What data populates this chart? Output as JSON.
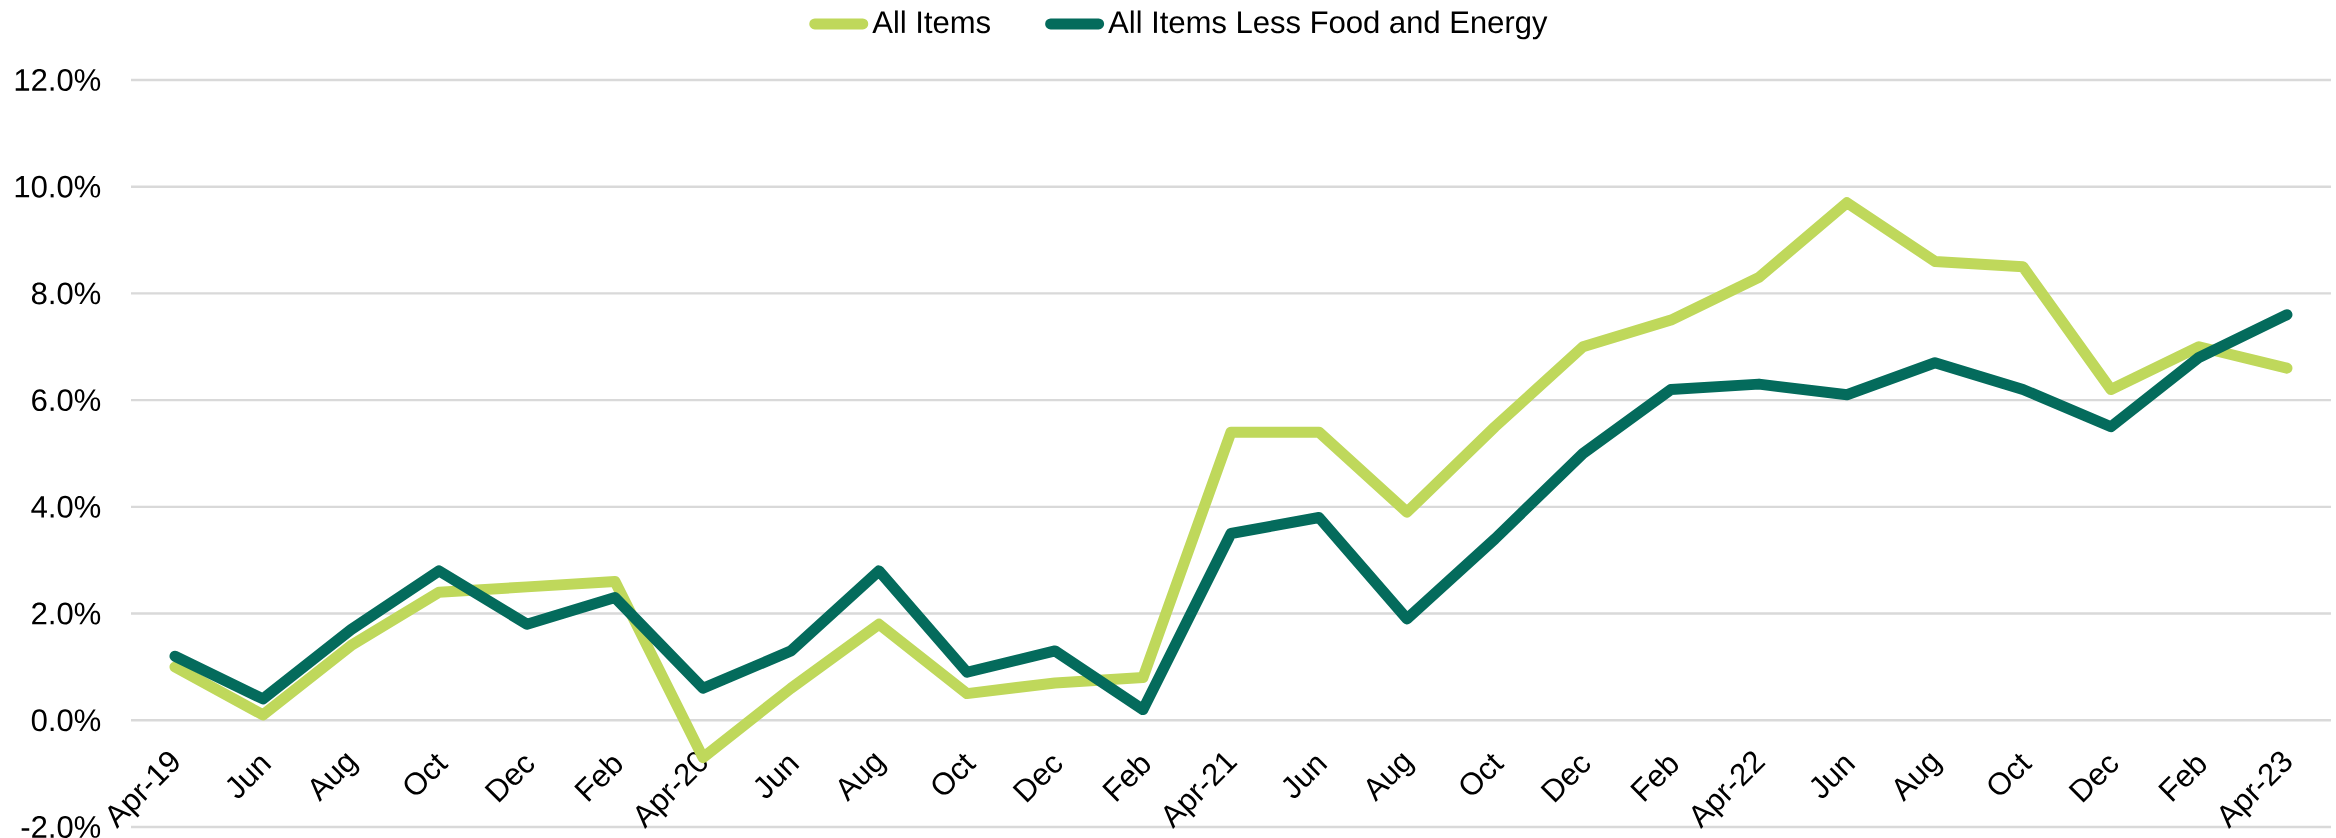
{
  "chart_data": {
    "type": "line",
    "categories": [
      "Apr-19",
      "Jun",
      "Aug",
      "Oct",
      "Dec",
      "Feb",
      "Apr-20",
      "Jun",
      "Aug",
      "Oct",
      "Dec",
      "Feb",
      "Apr-21",
      "Jun",
      "Aug",
      "Oct",
      "Dec",
      "Feb",
      "Apr-22",
      "Jun",
      "Aug",
      "Oct",
      "Dec",
      "Feb",
      "Apr-23"
    ],
    "series": [
      {
        "name": "All Items",
        "color": "#bfd85b",
        "values": [
          1.0,
          0.1,
          1.4,
          2.4,
          2.5,
          2.6,
          -0.7,
          0.6,
          1.8,
          0.5,
          0.7,
          0.8,
          5.4,
          5.4,
          3.9,
          5.5,
          7.0,
          7.5,
          8.3,
          9.7,
          8.6,
          8.5,
          6.2,
          7.0,
          6.6
        ]
      },
      {
        "name": "All Items Less Food and Energy",
        "color": "#046b5c",
        "values": [
          1.2,
          0.4,
          1.7,
          2.8,
          1.8,
          2.3,
          0.6,
          1.3,
          2.8,
          0.9,
          1.3,
          0.2,
          3.5,
          3.8,
          1.9,
          3.4,
          5.0,
          6.2,
          6.3,
          6.1,
          6.7,
          6.2,
          5.5,
          6.8,
          7.6
        ]
      }
    ],
    "ylim": [
      -2,
      12
    ],
    "yticks": [
      {
        "value": -2,
        "label": "-2.0%"
      },
      {
        "value": 0,
        "label": "0.0%"
      },
      {
        "value": 2,
        "label": "2.0%"
      },
      {
        "value": 4,
        "label": "4.0%"
      },
      {
        "value": 6,
        "label": "6.0%"
      },
      {
        "value": 8,
        "label": "8.0%"
      },
      {
        "value": 10,
        "label": "10.0%"
      },
      {
        "value": 12,
        "label": "12.0%"
      }
    ],
    "grid": "y",
    "legend": "top"
  }
}
